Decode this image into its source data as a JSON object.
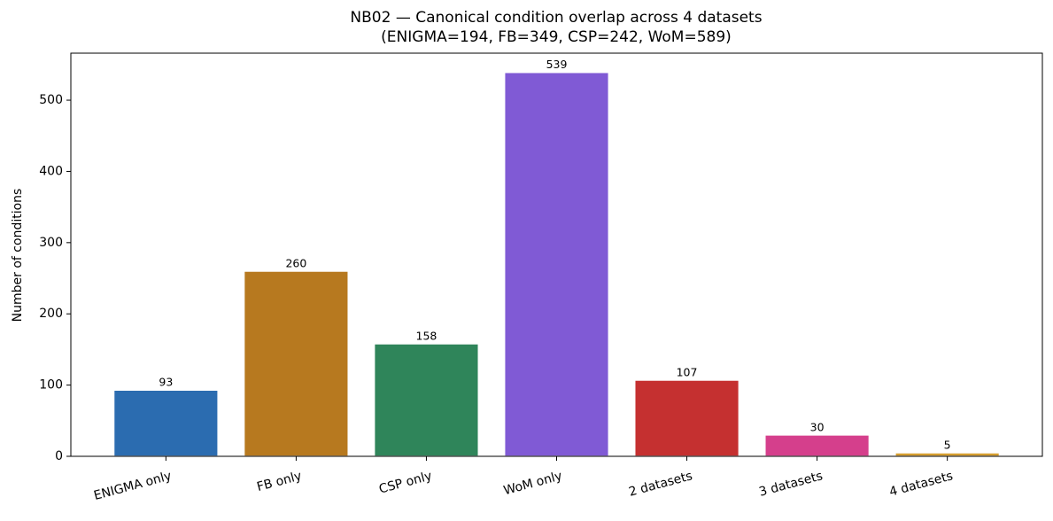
{
  "chart_data": {
    "type": "bar",
    "title": "NB02 — Canonical condition overlap across 4 datasets",
    "subtitle": "(ENIGMA=194, FB=349, CSP=242, WoM=589)",
    "y_label": "Number of conditions",
    "categories": [
      "ENIGMA only",
      "FB only",
      "CSP only",
      "WoM only",
      "2 datasets",
      "3 datasets",
      "4 datasets"
    ],
    "values": [
      93,
      260,
      158,
      539,
      107,
      30,
      5
    ],
    "colors": [
      "#2b6cb0",
      "#b7791f",
      "#2f855a",
      "#805ad5",
      "#c53030",
      "#d53f8c",
      "#d69e2e"
    ],
    "ylim": [
      0,
      566
    ],
    "yticks": [
      0,
      100,
      200,
      300,
      400,
      500
    ],
    "grid": false
  }
}
